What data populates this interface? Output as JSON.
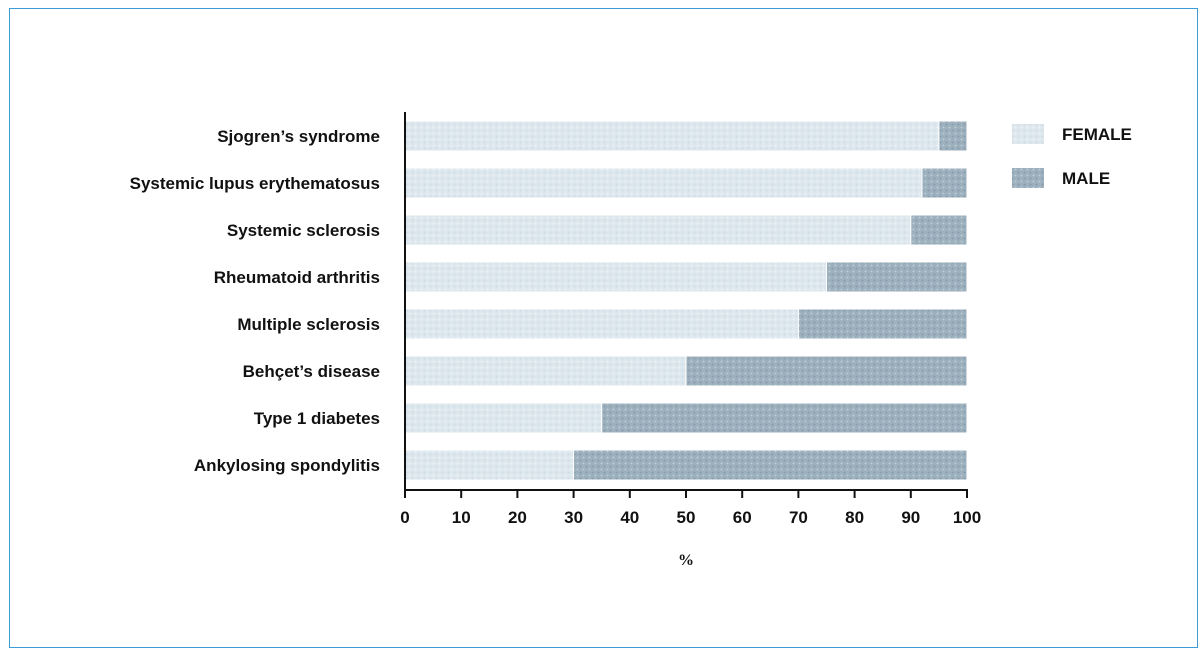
{
  "chart_data": {
    "type": "bar",
    "orientation": "horizontal",
    "stacked": true,
    "categories": [
      "Sjogren’s syndrome",
      "Systemic lupus erythematosus",
      "Systemic sclerosis",
      "Rheumatoid arthritis",
      "Multiple sclerosis",
      "Behçet’s disease",
      "Type 1 diabetes",
      "Ankylosing spondylitis"
    ],
    "series": [
      {
        "name": "FEMALE",
        "values": [
          95,
          92,
          90,
          75,
          70,
          50,
          35,
          30
        ],
        "color": "#dfe8ef"
      },
      {
        "name": "MALE",
        "values": [
          5,
          8,
          10,
          25,
          30,
          50,
          65,
          70
        ],
        "color": "#9fb2c0"
      }
    ],
    "xlabel": "%",
    "ylabel": "",
    "xlim": [
      0,
      100
    ],
    "xticks": [
      "0",
      "10",
      "20",
      "30",
      "40",
      "50",
      "60",
      "70",
      "80",
      "90",
      "100"
    ],
    "grid": false,
    "legend_position": "top-right"
  }
}
